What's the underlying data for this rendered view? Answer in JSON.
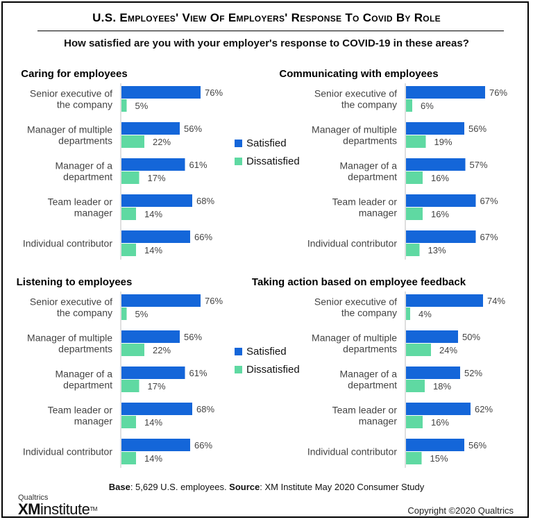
{
  "header": {
    "title": "U.S. Employees' View Of Employers' Response To Covid By Role",
    "subtitle": "How satisfied are you with your employer's response to COVID-19 in these areas?"
  },
  "legend": {
    "satisfied_label": "Satisfied",
    "dissatisfied_label": "Dissatisfied"
  },
  "colors": {
    "satisfied": "#1466d9",
    "dissatisfied": "#5fd9a2"
  },
  "chart_data": [
    {
      "type": "bar",
      "orientation": "horizontal",
      "title": "Caring for employees",
      "categories": [
        "Senior executive of\nthe company",
        "Manager of multiple\ndepartments",
        "Manager of a\ndepartment",
        "Team leader or\nmanager",
        "Individual contributor"
      ],
      "series": [
        {
          "name": "Satisfied",
          "values": [
            76,
            56,
            61,
            68,
            66
          ]
        },
        {
          "name": "Dissatisfied",
          "values": [
            5,
            22,
            17,
            14,
            14
          ]
        }
      ],
      "value_suffix": "%",
      "xlim": [
        0,
        100
      ],
      "legend": "right"
    },
    {
      "type": "bar",
      "orientation": "horizontal",
      "title": "Communicating with employees",
      "categories": [
        "Senior executive of\nthe company",
        "Manager of multiple\ndepartments",
        "Manager of a\ndepartment",
        "Team leader or\nmanager",
        "Individual contributor"
      ],
      "series": [
        {
          "name": "Satisfied",
          "values": [
            76,
            56,
            57,
            67,
            67
          ]
        },
        {
          "name": "Dissatisfied",
          "values": [
            6,
            19,
            16,
            16,
            13
          ]
        }
      ],
      "value_suffix": "%",
      "xlim": [
        0,
        100
      ]
    },
    {
      "type": "bar",
      "orientation": "horizontal",
      "title": "Listening to employees",
      "categories": [
        "Senior executive of\nthe company",
        "Manager of multiple\ndepartments",
        "Manager of a\ndepartment",
        "Team leader or\nmanager",
        "Individual contributor"
      ],
      "series": [
        {
          "name": "Satisfied",
          "values": [
            76,
            56,
            61,
            68,
            66
          ]
        },
        {
          "name": "Dissatisfied",
          "values": [
            5,
            22,
            17,
            14,
            14
          ]
        }
      ],
      "value_suffix": "%",
      "xlim": [
        0,
        100
      ],
      "legend": "right"
    },
    {
      "type": "bar",
      "orientation": "horizontal",
      "title": "Taking action based on employee feedback",
      "categories": [
        "Senior executive of\nthe company",
        "Manager of multiple\ndepartments",
        "Manager of a\ndepartment",
        "Team leader or\nmanager",
        "Individual contributor"
      ],
      "series": [
        {
          "name": "Satisfied",
          "values": [
            74,
            50,
            52,
            62,
            56
          ]
        },
        {
          "name": "Dissatisfied",
          "values": [
            4,
            24,
            18,
            16,
            15
          ]
        }
      ],
      "value_suffix": "%",
      "xlim": [
        0,
        100
      ]
    }
  ],
  "footer": {
    "base_label": "Base",
    "base_text": ": 5,629 U.S. employees. ",
    "source_label": "Source",
    "source_text": ": XM Institute May 2020 Consumer Study",
    "copyright": "Copyright ©2020 Qualtrics"
  },
  "logo": {
    "top_text": "Qualtrics",
    "xm_text": "XM",
    "institute_text": "institute",
    "tm_text": "TM"
  }
}
